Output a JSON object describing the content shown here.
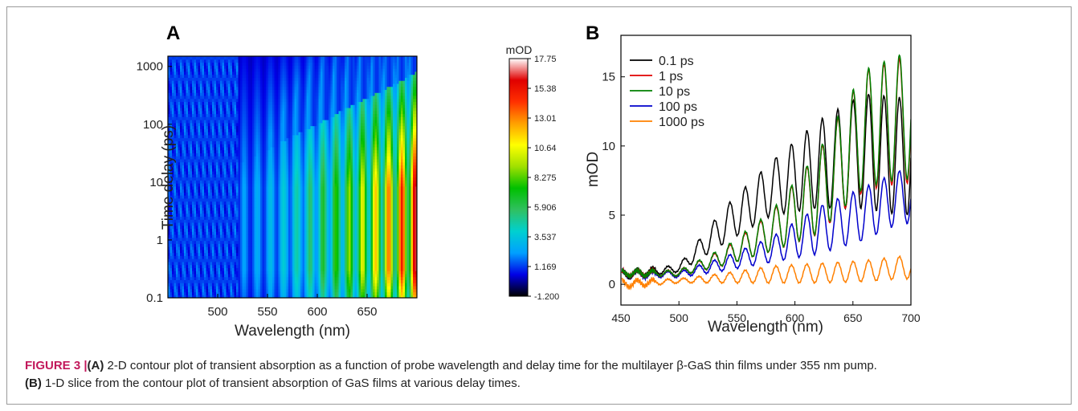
{
  "caption": {
    "label": "FIGURE 3 |",
    "line1_tag": "(A)",
    "line1_text": " 2-D contour plot of transient absorption as a function of probe wavelength and delay time for the multilayer β-GaS thin films under 355 nm pump.",
    "line2_tag": "(B)",
    "line2_text": " 1-D slice from the contour plot of transient absorption of GaS films at various delay times."
  },
  "chart_data": [
    {
      "panel_label": "A",
      "type": "heatmap",
      "xlabel": "Wavelength (nm)",
      "ylabel": "Time delay (ps)",
      "xlim": [
        450,
        700
      ],
      "ylim": [
        0.1,
        1500
      ],
      "yscale": "log",
      "x_ticks": [
        500,
        550,
        600,
        650
      ],
      "y_ticks": [
        0.1,
        1,
        10,
        100,
        1000
      ],
      "y_tick_labels": [
        "0.1",
        "1",
        "10",
        "100",
        "1000"
      ],
      "colorbar": {
        "label": "mOD",
        "ticks": [
          17.75,
          15.38,
          13.01,
          10.64,
          8.275,
          5.906,
          3.537,
          1.169,
          -1.2
        ],
        "tick_labels": [
          "17.75",
          "15.38",
          "13.01",
          "10.64",
          "8.275",
          "5.906",
          "3.537",
          "1.169",
          "-1.200"
        ],
        "colors": [
          "#000000",
          "#0000e6",
          "#00a0ff",
          "#00d0d0",
          "#30c060",
          "#00c000",
          "#a0e000",
          "#ffff00",
          "#ffa000",
          "#ff3000",
          "#e00000",
          "#ffffff"
        ]
      }
    },
    {
      "panel_label": "B",
      "type": "line",
      "xlabel": "Wavelength (nm)",
      "ylabel": "mOD",
      "xlim": [
        450,
        700
      ],
      "ylim": [
        -1.5,
        18
      ],
      "x_ticks": [
        450,
        500,
        550,
        600,
        650,
        700
      ],
      "y_ticks": [
        0,
        5,
        10,
        15
      ],
      "series": [
        {
          "name": "0.1 ps",
          "color": "#000000",
          "peaks": [
            [
              460,
              1.0
            ],
            [
              500,
              1.4
            ],
            [
              540,
              5.6
            ],
            [
              580,
              8.9
            ],
            [
              620,
              11.8
            ],
            [
              660,
              13.8
            ],
            [
              690,
              13.5
            ]
          ],
          "valleys": [
            [
              460,
              0.5
            ],
            [
              500,
              0.9
            ],
            [
              540,
              3.0
            ],
            [
              580,
              5.0
            ],
            [
              620,
              5.5
            ],
            [
              660,
              5.5
            ],
            [
              690,
              5.0
            ]
          ]
        },
        {
          "name": "1 ps",
          "color": "#e00000",
          "peaks": [
            [
              460,
              1.0
            ],
            [
              500,
              1.0
            ],
            [
              540,
              2.6
            ],
            [
              580,
              5.2
            ],
            [
              620,
              9.5
            ],
            [
              660,
              15.4
            ],
            [
              690,
              16.3
            ]
          ],
          "valleys": [
            [
              460,
              0.6
            ],
            [
              500,
              0.6
            ],
            [
              540,
              1.4
            ],
            [
              580,
              2.4
            ],
            [
              620,
              3.6
            ],
            [
              660,
              6.8
            ],
            [
              690,
              7.3
            ]
          ]
        },
        {
          "name": "10 ps",
          "color": "#008000",
          "peaks": [
            [
              460,
              1.0
            ],
            [
              500,
              1.0
            ],
            [
              540,
              2.7
            ],
            [
              580,
              5.3
            ],
            [
              620,
              9.6
            ],
            [
              660,
              15.5
            ],
            [
              690,
              16.6
            ]
          ],
          "valleys": [
            [
              460,
              0.6
            ],
            [
              500,
              0.6
            ],
            [
              540,
              1.4
            ],
            [
              580,
              2.4
            ],
            [
              620,
              3.7
            ],
            [
              660,
              7.0
            ],
            [
              690,
              7.6
            ]
          ]
        },
        {
          "name": "100 ps",
          "color": "#0000cc",
          "peaks": [
            [
              460,
              1.0
            ],
            [
              500,
              0.9
            ],
            [
              540,
              2.0
            ],
            [
              580,
              3.4
            ],
            [
              620,
              5.6
            ],
            [
              660,
              7.0
            ],
            [
              690,
              8.2
            ]
          ],
          "valleys": [
            [
              460,
              0.5
            ],
            [
              500,
              0.5
            ],
            [
              540,
              1.0
            ],
            [
              580,
              1.6
            ],
            [
              620,
              2.2
            ],
            [
              660,
              3.2
            ],
            [
              690,
              4.4
            ]
          ]
        },
        {
          "name": "1000 ps",
          "color": "#ff8000",
          "peaks": [
            [
              460,
              0.3
            ],
            [
              500,
              0.4
            ],
            [
              540,
              0.8
            ],
            [
              580,
              1.3
            ],
            [
              620,
              1.5
            ],
            [
              660,
              1.7
            ],
            [
              690,
              2.0
            ]
          ],
          "valleys": [
            [
              460,
              -0.2
            ],
            [
              500,
              0.1
            ],
            [
              540,
              0.1
            ],
            [
              580,
              0.1
            ],
            [
              620,
              0.1
            ],
            [
              660,
              0.2
            ],
            [
              690,
              0.4
            ]
          ]
        }
      ]
    }
  ]
}
